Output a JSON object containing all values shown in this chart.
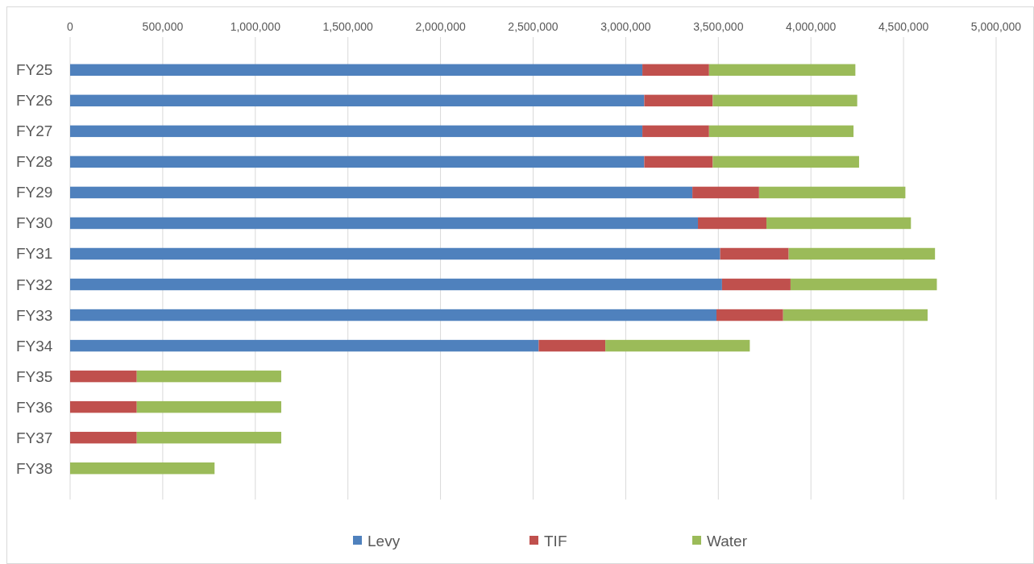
{
  "chart_data": {
    "type": "bar",
    "orientation": "horizontal",
    "stacked": true,
    "categories": [
      "FY25",
      "FY26",
      "FY27",
      "FY28",
      "FY29",
      "FY30",
      "FY31",
      "FY32",
      "FY33",
      "FY34",
      "FY35",
      "FY36",
      "FY37",
      "FY38"
    ],
    "series": [
      {
        "name": "Levy",
        "color": "#4f81bd",
        "values": [
          3090000,
          3100000,
          3090000,
          3100000,
          3360000,
          3390000,
          3510000,
          3520000,
          3490000,
          2530000,
          0,
          0,
          0,
          0
        ]
      },
      {
        "name": "TIF",
        "color": "#c0504d",
        "values": [
          360000,
          370000,
          360000,
          370000,
          360000,
          370000,
          370000,
          370000,
          360000,
          360000,
          360000,
          360000,
          360000,
          0
        ]
      },
      {
        "name": "Water",
        "color": "#9bbb59",
        "values": [
          790000,
          780000,
          780000,
          790000,
          790000,
          780000,
          790000,
          790000,
          780000,
          780000,
          780000,
          780000,
          780000,
          780000
        ]
      }
    ],
    "xlim": [
      0,
      5000000
    ],
    "xticks": [
      {
        "value": 0,
        "label": "0"
      },
      {
        "value": 500000,
        "label": "500,000"
      },
      {
        "value": 1000000,
        "label": "1,000,000"
      },
      {
        "value": 1500000,
        "label": "1,500,000"
      },
      {
        "value": 2000000,
        "label": "2,000,000"
      },
      {
        "value": 2500000,
        "label": "2,500,000"
      },
      {
        "value": 3000000,
        "label": "3,000,000"
      },
      {
        "value": 3500000,
        "label": "3,500,000"
      },
      {
        "value": 4000000,
        "label": "4,000,000"
      },
      {
        "value": 4500000,
        "label": "4,500,000"
      },
      {
        "value": 5000000,
        "label": "5,000,000"
      }
    ],
    "grid": "x",
    "legend": "bottom"
  }
}
